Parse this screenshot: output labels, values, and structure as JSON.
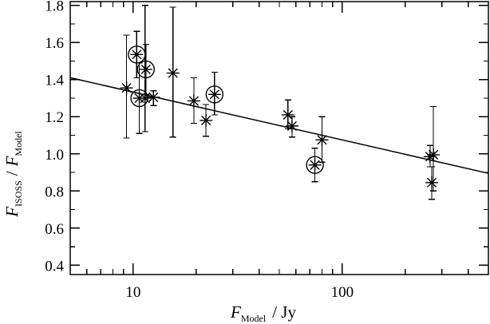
{
  "chart_data": {
    "type": "scatter",
    "title": "",
    "xlabel": {
      "main": "F",
      "sub": "Model",
      "tail": "/ Jy"
    },
    "ylabel": {
      "main_num": "F",
      "sub_num": "ISOSS",
      "sep": "/",
      "main_den": "F",
      "sub_den": "Model"
    },
    "x_scale": "log",
    "xlim": [
      5,
      500
    ],
    "ylim": [
      0.35,
      1.82
    ],
    "x_major_ticks": [
      10,
      100
    ],
    "x_tick_labels": [
      "10",
      "100"
    ],
    "y_major_ticks": [
      0.4,
      0.6,
      0.8,
      1.0,
      1.2,
      1.4,
      1.6,
      1.8
    ],
    "y_tick_labels": [
      "0.4",
      "0.6",
      "0.8",
      "1.0",
      "1.2",
      "1.4",
      "1.6",
      "1.8"
    ],
    "grid": false,
    "fit_line": {
      "x": [
        5,
        500
      ],
      "y": [
        1.41,
        0.895
      ]
    },
    "series": [
      {
        "marker": "asterisk",
        "points": [
          {
            "x": 9.3,
            "y": 1.355,
            "err": [
              1.085,
              1.64
            ]
          },
          {
            "x": 11.4,
            "y": 1.3,
            "err": [
              1.12,
              1.8
            ]
          },
          {
            "x": 12.5,
            "y": 1.305,
            "err": [
              1.26,
              1.34
            ]
          },
          {
            "x": 15.5,
            "y": 1.435,
            "err": [
              1.09,
              1.79
            ]
          },
          {
            "x": 19.5,
            "y": 1.285,
            "err": [
              1.165,
              1.41
            ]
          },
          {
            "x": 22.3,
            "y": 1.18,
            "err": [
              1.095,
              1.265
            ]
          },
          {
            "x": 55.0,
            "y": 1.21,
            "err": [
              1.135,
              1.29
            ]
          },
          {
            "x": 57.5,
            "y": 1.15,
            "err": [
              1.09,
              1.2
            ]
          },
          {
            "x": 80.0,
            "y": 1.075,
            "err": [
              0.955,
              1.2
            ]
          },
          {
            "x": 263.0,
            "y": 0.985,
            "err": [
              0.93,
              1.045
            ]
          },
          {
            "x": 273.0,
            "y": 0.995,
            "err": [
              0.8,
              1.255
            ]
          },
          {
            "x": 268.0,
            "y": 0.845,
            "err": [
              0.755,
              0.93
            ]
          }
        ]
      },
      {
        "marker": "circled-asterisk",
        "points": [
          {
            "x": 10.4,
            "y": 1.535,
            "err": [
              1.41,
              1.66
            ]
          },
          {
            "x": 11.5,
            "y": 1.455,
            "err": [
              1.32,
              1.59
            ]
          },
          {
            "x": 10.7,
            "y": 1.3,
            "err": [
              1.11,
              1.49
            ]
          },
          {
            "x": 24.5,
            "y": 1.32,
            "err": [
              1.21,
              1.44
            ]
          },
          {
            "x": 74.0,
            "y": 0.94,
            "err": [
              0.85,
              1.03
            ]
          }
        ]
      }
    ]
  }
}
